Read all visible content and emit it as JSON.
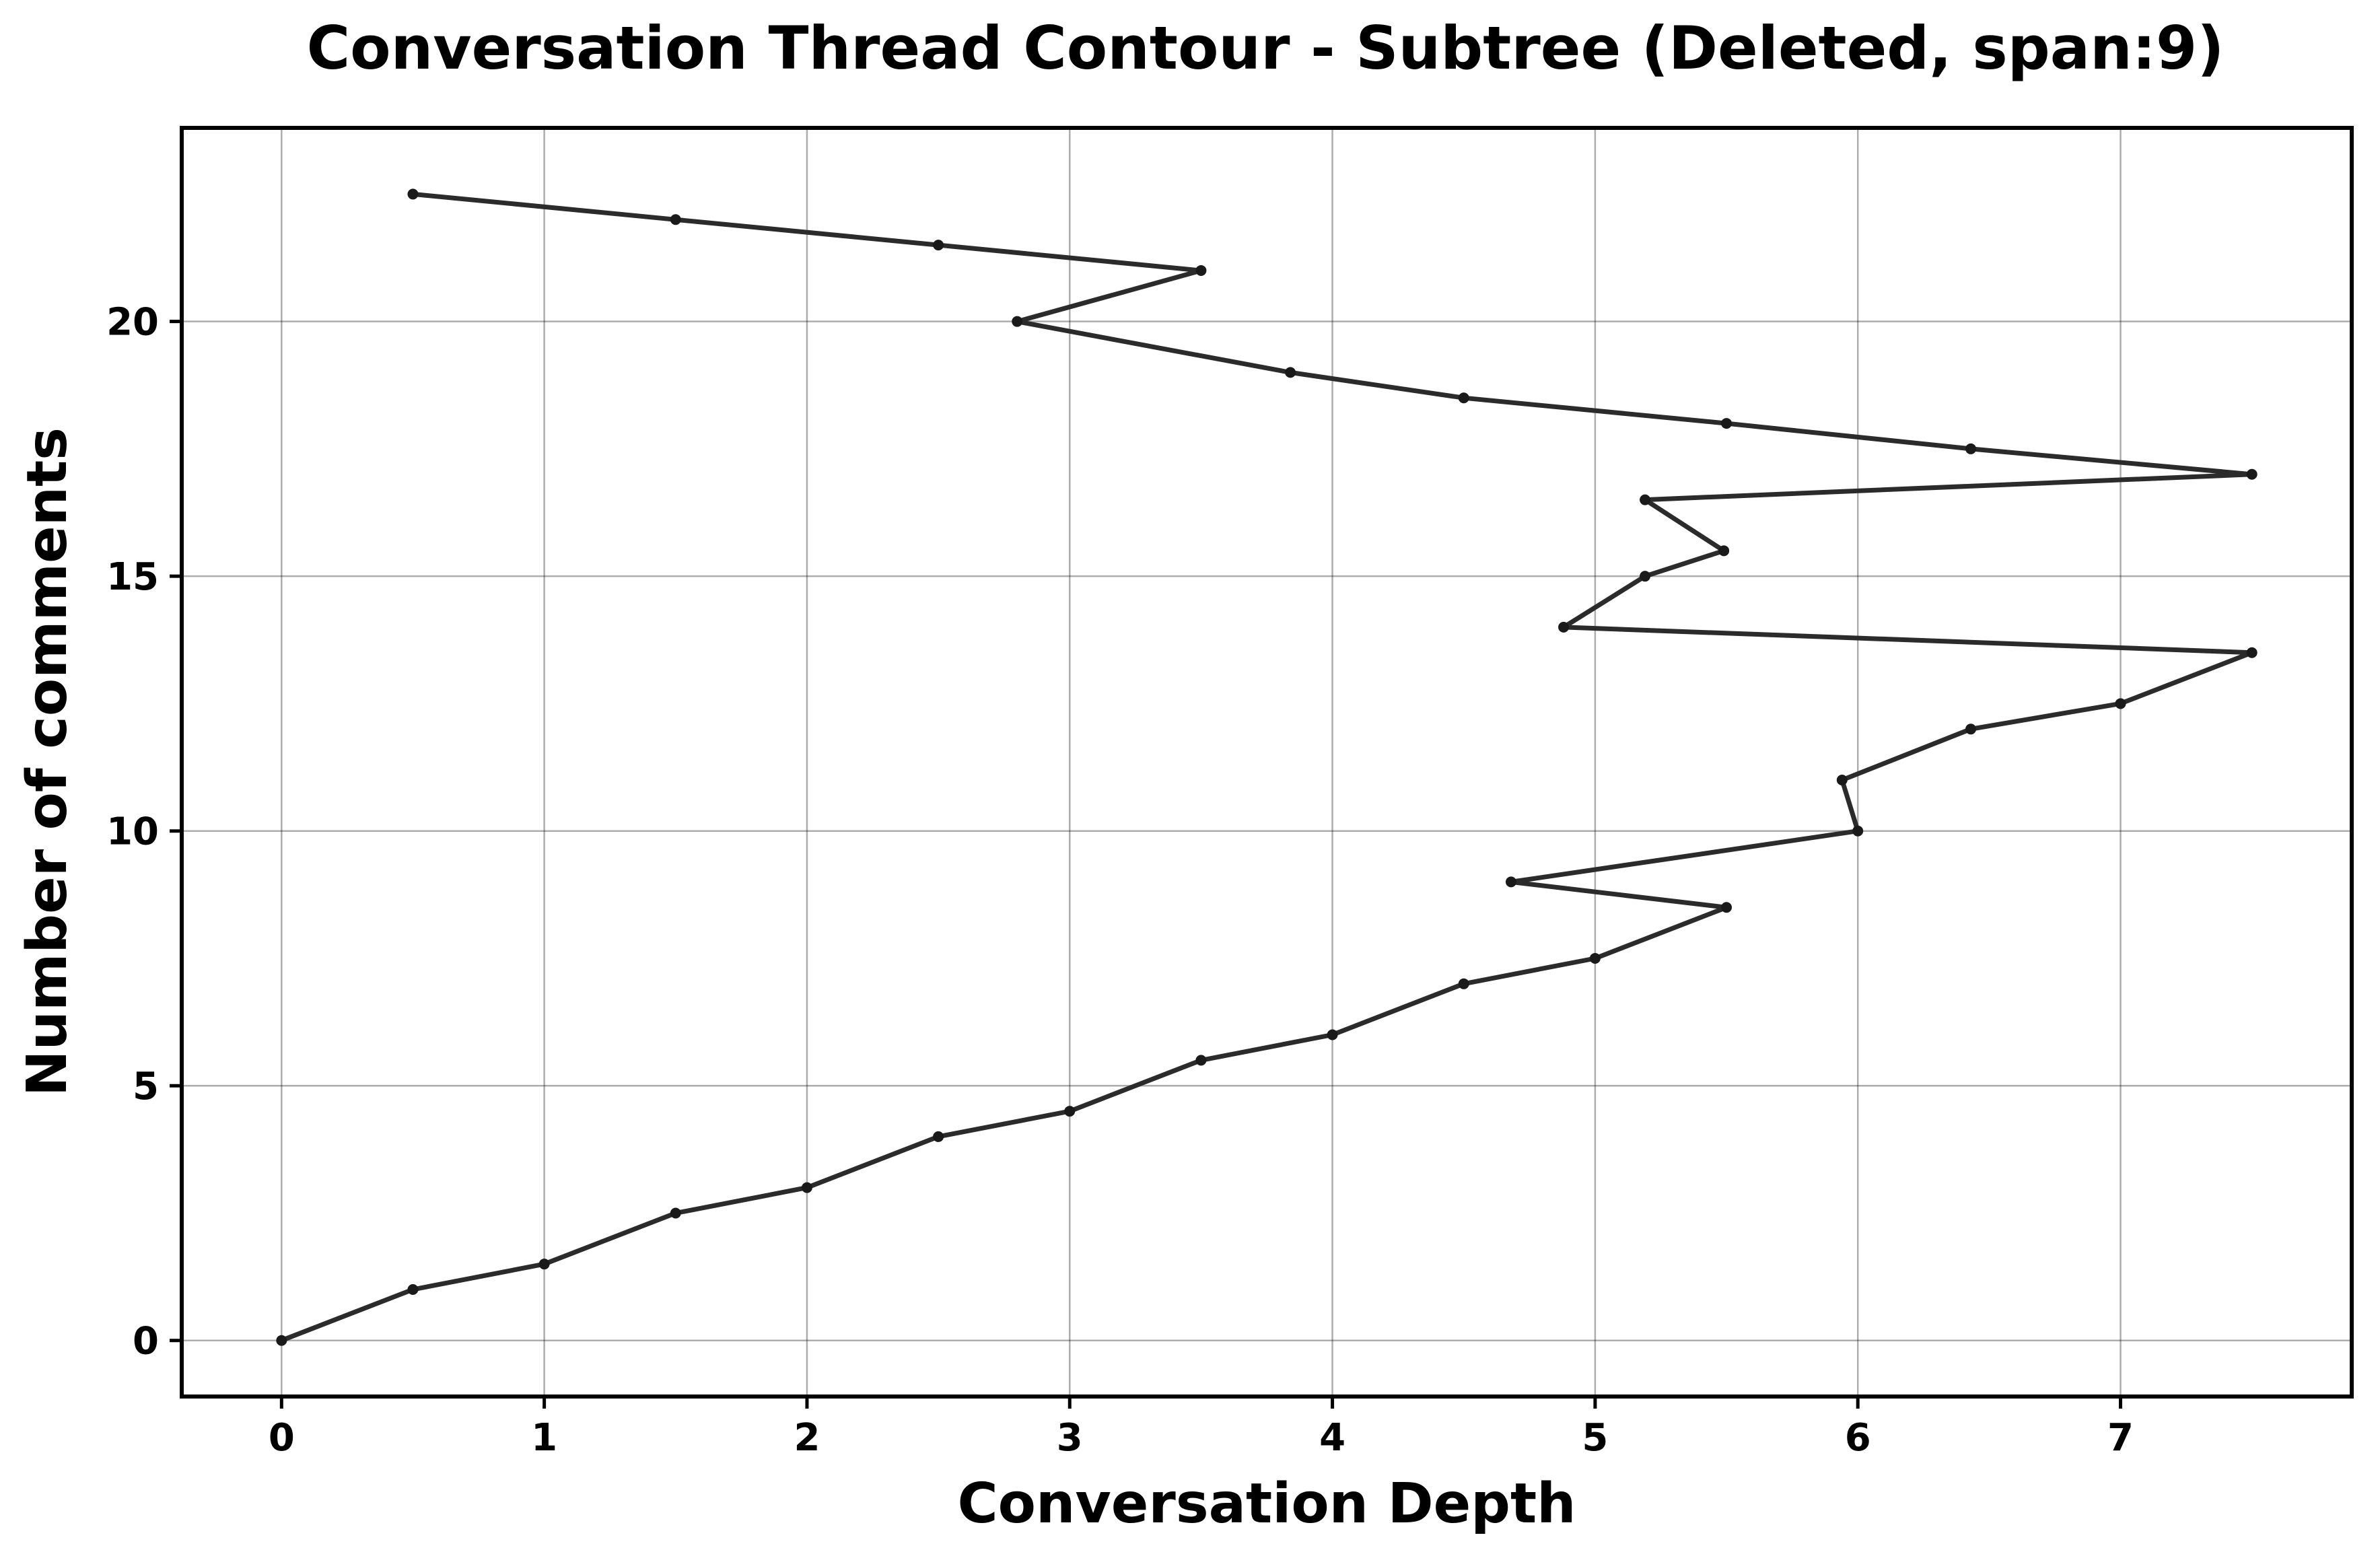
{
  "chart_data": {
    "type": "line",
    "title": "Conversation Thread Contour  - Subtree (Deleted, span:9)",
    "xlabel": "Conversation Depth",
    "ylabel": "Number of comments",
    "xlim": [
      -0.38,
      7.88
    ],
    "ylim": [
      -1.1,
      23.8
    ],
    "xticks": [
      0,
      1,
      2,
      3,
      4,
      5,
      6,
      7
    ],
    "yticks": [
      0,
      5,
      10,
      15,
      20
    ],
    "xtick_labels": [
      "0",
      "1",
      "2",
      "3",
      "4",
      "5",
      "6",
      "7"
    ],
    "ytick_labels": [
      "0",
      "5",
      "10",
      "15",
      "20"
    ],
    "grid": true,
    "line_color": "#2b2b2b",
    "marker_color": "#1a1a1a",
    "points": [
      {
        "x": 0,
        "y": 0
      },
      {
        "x": 0.5,
        "y": 1
      },
      {
        "x": 1,
        "y": 1.5
      },
      {
        "x": 1.5,
        "y": 2.5
      },
      {
        "x": 2,
        "y": 3
      },
      {
        "x": 2.5,
        "y": 4
      },
      {
        "x": 3,
        "y": 4.5
      },
      {
        "x": 3.5,
        "y": 5.5
      },
      {
        "x": 4,
        "y": 6
      },
      {
        "x": 4.5,
        "y": 7
      },
      {
        "x": 5,
        "y": 7.5
      },
      {
        "x": 5.5,
        "y": 8.5
      },
      {
        "x": 4.68,
        "y": 9
      },
      {
        "x": 6,
        "y": 10
      },
      {
        "x": 5.94,
        "y": 11
      },
      {
        "x": 6.43,
        "y": 12
      },
      {
        "x": 7,
        "y": 12.5
      },
      {
        "x": 7.5,
        "y": 13.5
      },
      {
        "x": 4.88,
        "y": 14
      },
      {
        "x": 5.19,
        "y": 15
      },
      {
        "x": 5.49,
        "y": 15.5
      },
      {
        "x": 5.19,
        "y": 16.5
      },
      {
        "x": 7.5,
        "y": 17
      },
      {
        "x": 6.43,
        "y": 17.5
      },
      {
        "x": 5.5,
        "y": 18
      },
      {
        "x": 4.5,
        "y": 18.5
      },
      {
        "x": 3.84,
        "y": 19
      },
      {
        "x": 2.8,
        "y": 20
      },
      {
        "x": 3.5,
        "y": 21
      },
      {
        "x": 2.5,
        "y": 21.5
      },
      {
        "x": 1.5,
        "y": 22
      },
      {
        "x": 0.5,
        "y": 22.5
      }
    ]
  }
}
